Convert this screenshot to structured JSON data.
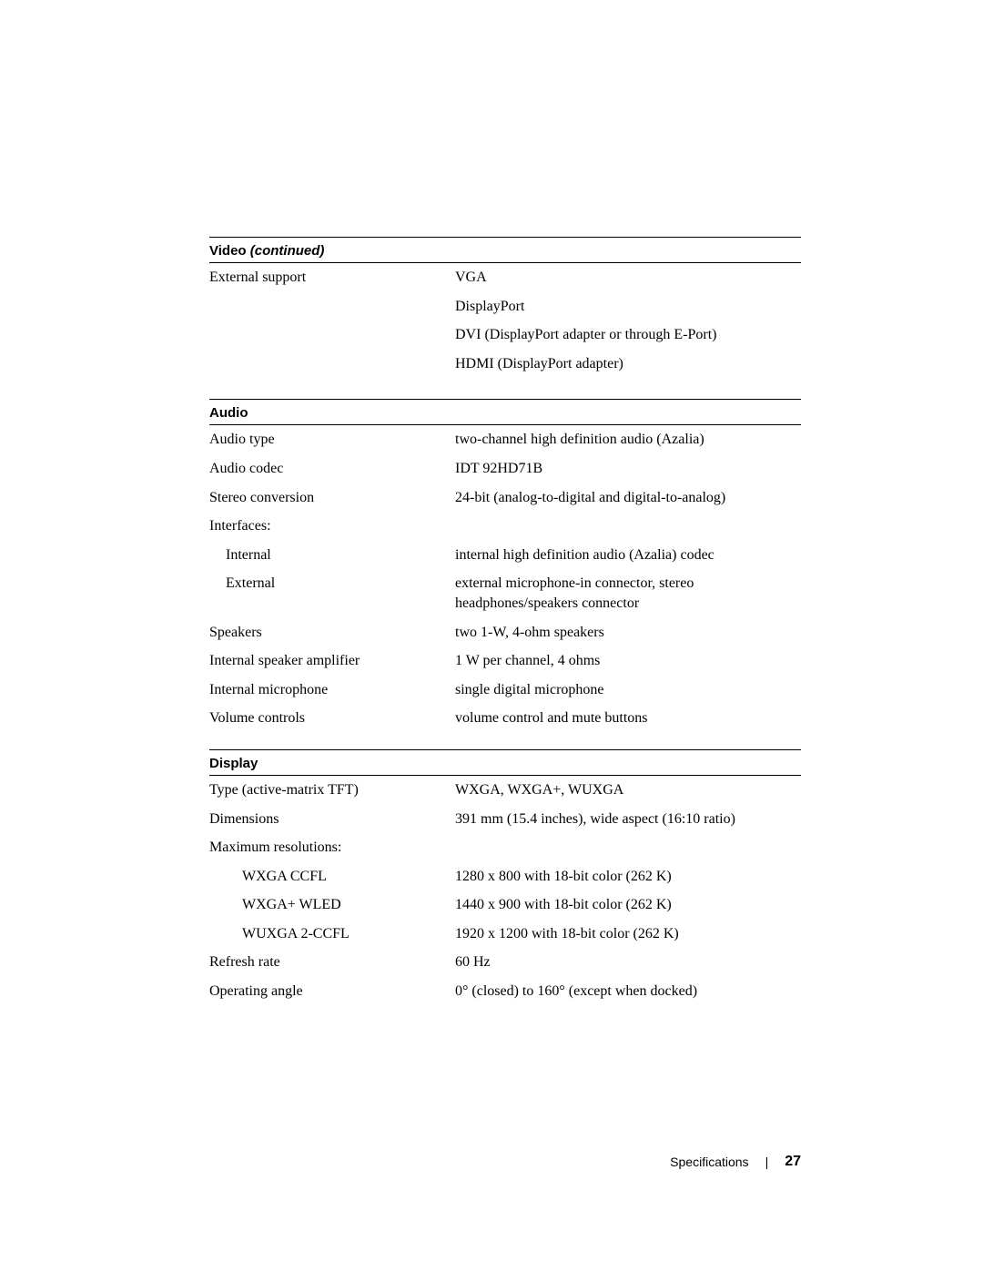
{
  "video": {
    "section_title_prefix": "Video ",
    "section_title_suffix": "(continued)",
    "rows": [
      {
        "label": "External support",
        "values": [
          "VGA",
          "DisplayPort",
          "DVI (DisplayPort adapter or through E-Port)",
          "HDMI (DisplayPort adapter)"
        ]
      }
    ]
  },
  "audio": {
    "section_title": "Audio",
    "rows": [
      {
        "label": "Audio type",
        "values": [
          "two-channel high definition audio (Azalia)"
        ]
      },
      {
        "label": "Audio codec",
        "values": [
          "IDT 92HD71B"
        ]
      },
      {
        "label": "Stereo conversion",
        "values": [
          "24-bit (analog-to-digital and digital-to-analog)"
        ]
      },
      {
        "label": "Interfaces:",
        "values": [
          ""
        ]
      },
      {
        "label": "Internal",
        "indent": 1,
        "values": [
          "internal high definition audio (Azalia) codec"
        ]
      },
      {
        "label": "External",
        "indent": 1,
        "values": [
          "external microphone-in connector, stereo headphones/speakers connector"
        ]
      },
      {
        "label": "Speakers",
        "values": [
          "two 1-W, 4-ohm speakers"
        ]
      },
      {
        "label": "Internal speaker amplifier",
        "values": [
          "1 W per channel, 4 ohms"
        ]
      },
      {
        "label": "Internal microphone",
        "values": [
          "single digital microphone"
        ]
      },
      {
        "label": "Volume controls",
        "values": [
          "volume control and mute buttons"
        ]
      }
    ]
  },
  "display": {
    "section_title": "Display",
    "rows": [
      {
        "label": "Type (active-matrix TFT)",
        "values": [
          "WXGA, WXGA+, WUXGA"
        ]
      },
      {
        "label": "Dimensions",
        "values": [
          "391 mm (15.4 inches), wide aspect (16:10 ratio)"
        ]
      },
      {
        "label": "Maximum resolutions:",
        "values": [
          ""
        ]
      },
      {
        "label": "WXGA CCFL",
        "indent": 2,
        "values": [
          "1280 x 800 with 18-bit color (262 K)"
        ]
      },
      {
        "label": "WXGA+ WLED",
        "indent": 2,
        "values": [
          "1440 x 900 with 18-bit color (262 K)"
        ]
      },
      {
        "label": "WUXGA 2-CCFL",
        "indent": 2,
        "values": [
          "1920 x 1200 with 18-bit color (262 K)"
        ]
      },
      {
        "label": "Refresh rate",
        "values": [
          "60 Hz"
        ]
      },
      {
        "label": "Operating angle",
        "values": [
          "0° (closed) to 160° (except when docked)"
        ]
      }
    ]
  },
  "footer": {
    "title": "Specifications",
    "separator": "|",
    "page_number": "27"
  }
}
